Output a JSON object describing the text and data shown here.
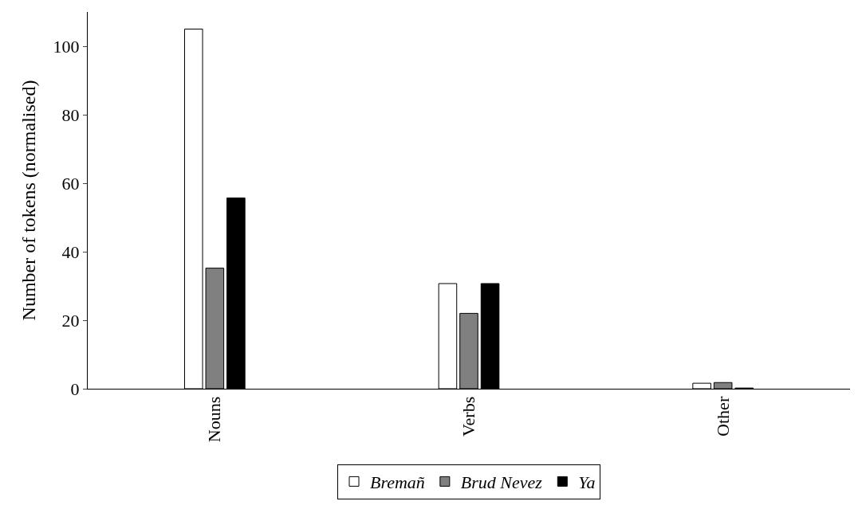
{
  "chart_data": {
    "type": "bar",
    "ylabel": "Number of tokens (normalised)",
    "categories": [
      "Nouns",
      "Verbs",
      "Other"
    ],
    "series": [
      {
        "name": "Bremañ",
        "color": "#ffffff",
        "values": [
          105,
          30.7,
          1.6
        ]
      },
      {
        "name": "Brud Nevez",
        "color": "#808080",
        "values": [
          35.2,
          22,
          1.8
        ]
      },
      {
        "name": "Ya",
        "color": "#000000",
        "values": [
          55.7,
          30.7,
          0.2
        ]
      }
    ],
    "ylim": [
      0,
      110
    ],
    "yticks": [
      0,
      20,
      40,
      60,
      80,
      100
    ],
    "legend": "bottom"
  }
}
